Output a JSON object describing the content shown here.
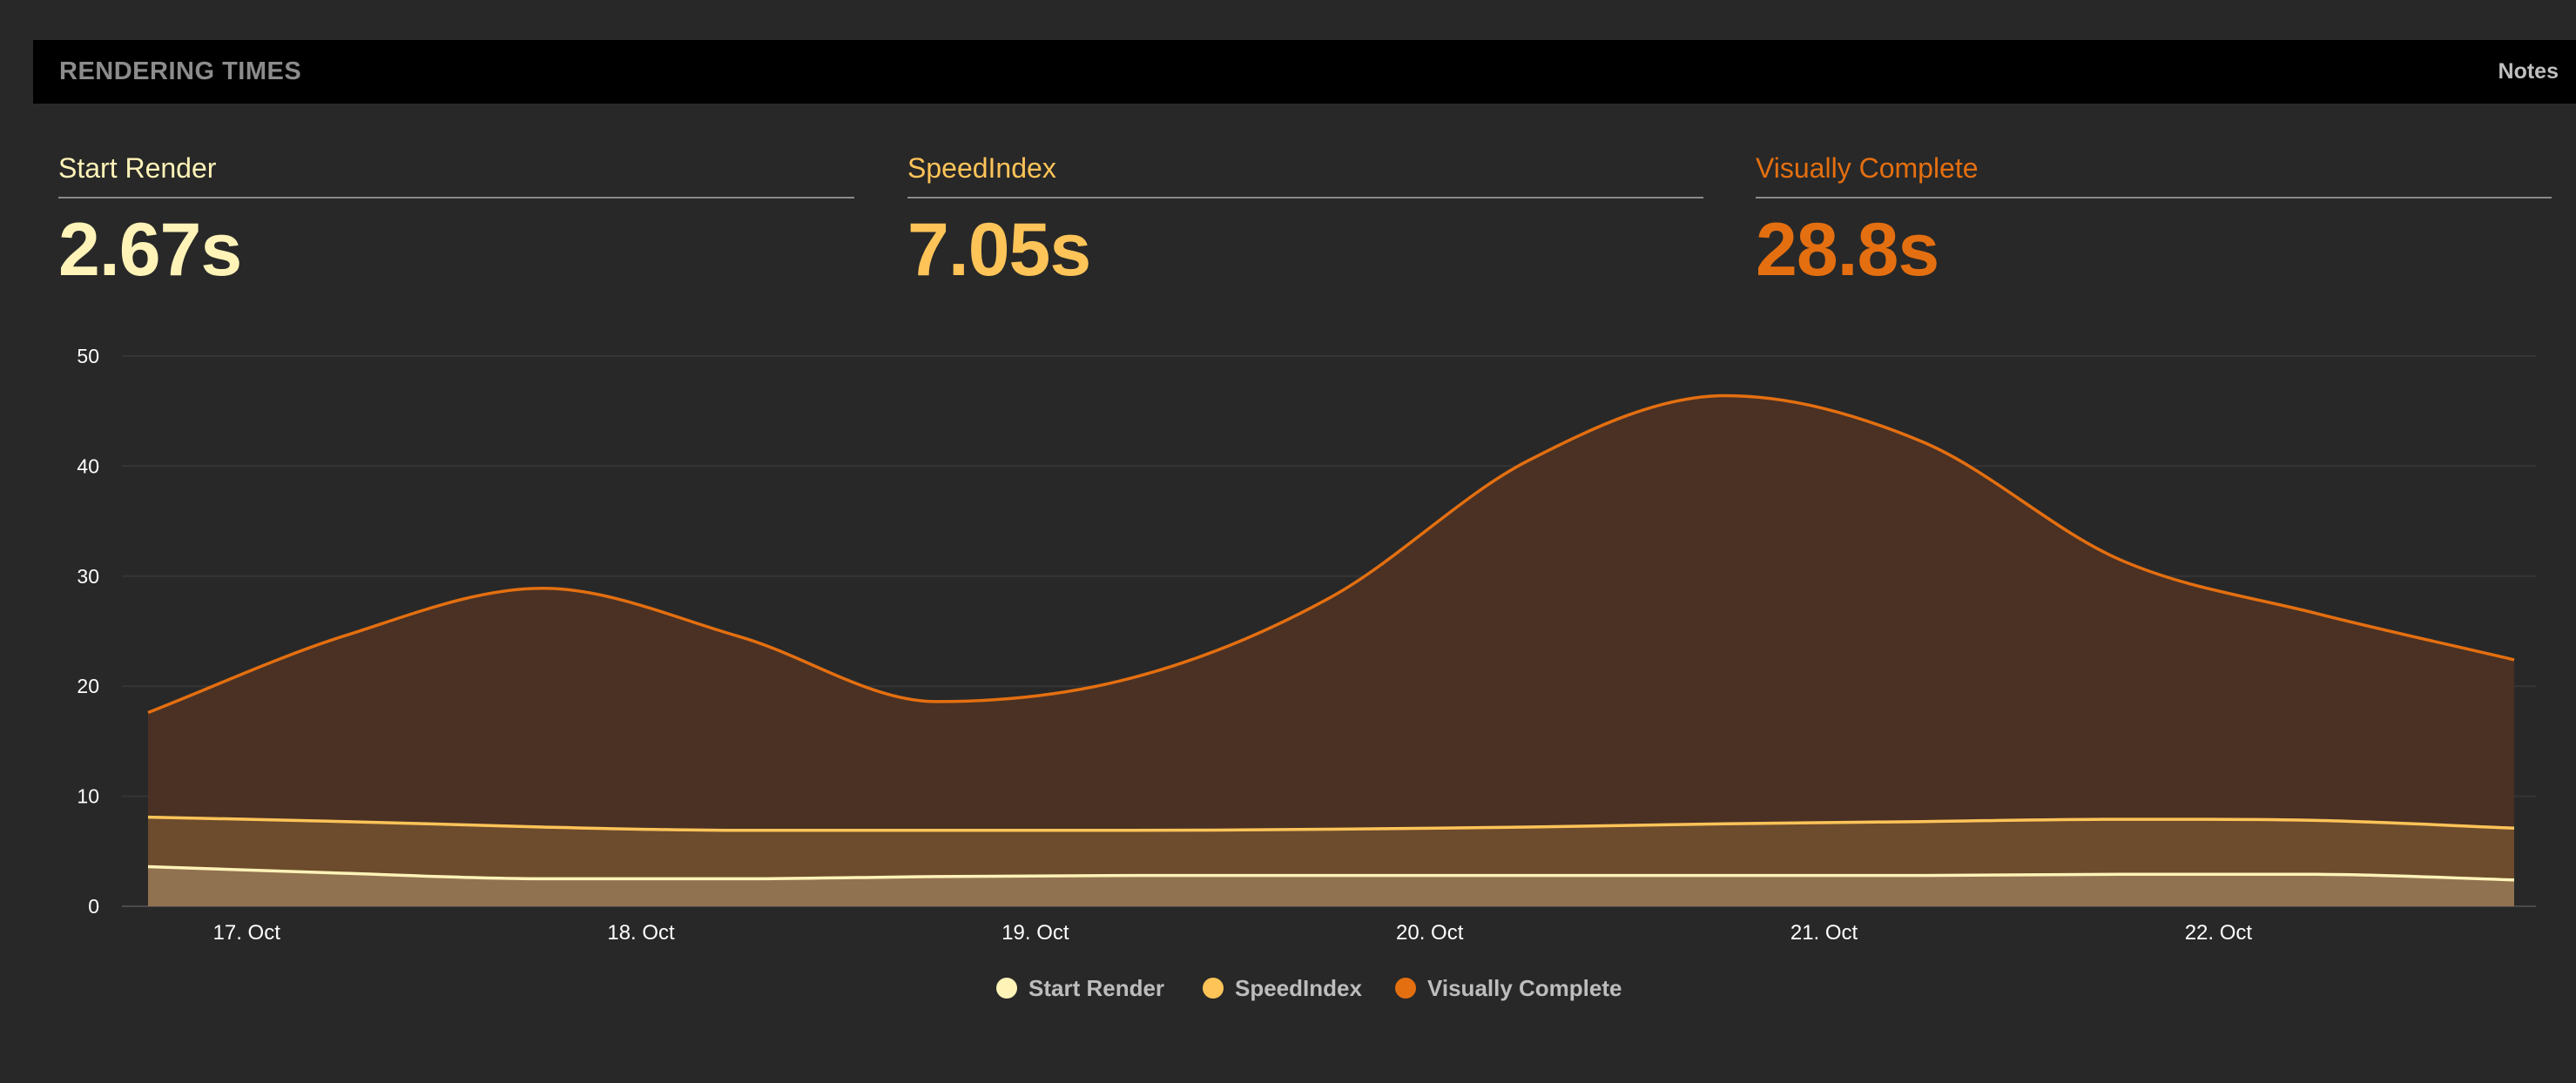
{
  "header": {
    "title": "RENDERING TIMES",
    "notes_label": "Notes"
  },
  "metrics": [
    {
      "label": "Start Render",
      "value": "2.67s",
      "color": "#fff3b8"
    },
    {
      "label": "SpeedIndex",
      "value": "7.05s",
      "color": "#ffc458"
    },
    {
      "label": "Visually Complete",
      "value": "28.8s",
      "color": "#e46f10"
    }
  ],
  "chart_data": {
    "type": "area",
    "title": "",
    "xlabel": "",
    "ylabel": "",
    "ylim": [
      0,
      50
    ],
    "yticks": [
      0,
      10,
      20,
      30,
      40,
      50
    ],
    "xticks": [
      "17. Oct",
      "18. Oct",
      "19. Oct",
      "20. Oct",
      "21. Oct",
      "22. Oct"
    ],
    "grid": true,
    "legend_position": "bottom-center",
    "x": [
      "16. Oct 18:00",
      "17. Oct 06:00",
      "17. Oct 18:00",
      "18. Oct 06:00",
      "18. Oct 18:00",
      "19. Oct 06:00",
      "19. Oct 18:00",
      "20. Oct 06:00",
      "20. Oct 18:00",
      "21. Oct 06:00",
      "21. Oct 18:00",
      "22. Oct 06:00",
      "22. Oct 18:00"
    ],
    "series": [
      {
        "name": "Start Render",
        "color": "#fff3b8",
        "fill": "#917250",
        "values": [
          3.6,
          3.0,
          2.5,
          2.5,
          2.7,
          2.8,
          2.8,
          2.8,
          2.8,
          2.8,
          2.9,
          2.9,
          2.4
        ]
      },
      {
        "name": "SpeedIndex",
        "color": "#ffc458",
        "fill": "#6d4c2d",
        "values": [
          8.1,
          7.7,
          7.2,
          6.9,
          6.9,
          6.9,
          7.0,
          7.2,
          7.5,
          7.7,
          7.9,
          7.8,
          7.1
        ]
      },
      {
        "name": "Visually Complete",
        "color": "#e46f10",
        "fill": "#4a3124",
        "values": [
          17.6,
          24.6,
          28.9,
          24.5,
          18.6,
          20.8,
          28.1,
          40.5,
          46.4,
          42.2,
          31.5,
          26.6,
          22.4
        ]
      }
    ]
  }
}
